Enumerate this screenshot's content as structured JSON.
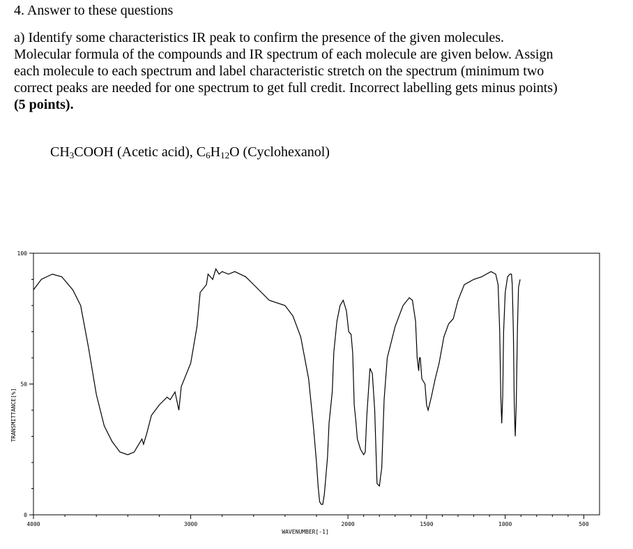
{
  "question": {
    "heading": "4. Answer to these questions",
    "part_a_lines": [
      "a) Identify some characteristics IR peak to confirm the presence of the given molecules.",
      "Molecular formula of the compounds and IR spectrum of each molecule are given below. Assign",
      "each molecule to each spectrum and label characteristic stretch on the spectrum (minimum two",
      "correct peaks are needed for one spectrum to get full credit. Incorrect labelling gets minus points)"
    ],
    "points": "(5 points).",
    "compounds": [
      {
        "formula_parts": [
          "CH",
          "3",
          "COOH"
        ],
        "name": "(Acetic acid),"
      },
      {
        "formula_parts": [
          "C",
          "6",
          "H",
          "12",
          "O"
        ],
        "name": "(Cyclohexanol)"
      }
    ]
  },
  "chart_data": {
    "type": "line",
    "xlabel": "WAVENUMBER[-1]",
    "ylabel": "TRANSMITTANCE[%]",
    "xlim": [
      4000,
      400
    ],
    "ylim": [
      0,
      100
    ],
    "x_ticks": [
      "4000",
      "3000",
      "2000",
      "1500",
      "1000",
      "500"
    ],
    "y_ticks": [
      "0",
      "50",
      "100"
    ],
    "series": [
      {
        "points": [
          [
            4000,
            86
          ],
          [
            3950,
            90
          ],
          [
            3880,
            92
          ],
          [
            3820,
            91
          ],
          [
            3750,
            86
          ],
          [
            3700,
            80
          ],
          [
            3650,
            64
          ],
          [
            3600,
            46
          ],
          [
            3550,
            34
          ],
          [
            3500,
            28
          ],
          [
            3450,
            24
          ],
          [
            3400,
            23
          ],
          [
            3360,
            24
          ],
          [
            3330,
            27
          ],
          [
            3310,
            29
          ],
          [
            3300,
            27
          ],
          [
            3280,
            31
          ],
          [
            3250,
            38
          ],
          [
            3200,
            42
          ],
          [
            3150,
            45
          ],
          [
            3130,
            44
          ],
          [
            3100,
            47
          ],
          [
            3075,
            40
          ],
          [
            3060,
            49
          ],
          [
            3000,
            58
          ],
          [
            2960,
            72
          ],
          [
            2940,
            85
          ],
          [
            2900,
            88
          ],
          [
            2890,
            92
          ],
          [
            2860,
            90
          ],
          [
            2840,
            94
          ],
          [
            2820,
            92
          ],
          [
            2800,
            93
          ],
          [
            2760,
            92
          ],
          [
            2720,
            93
          ],
          [
            2650,
            91
          ],
          [
            2600,
            88
          ],
          [
            2500,
            82
          ],
          [
            2400,
            80
          ],
          [
            2350,
            76
          ],
          [
            2300,
            68
          ],
          [
            2250,
            52
          ],
          [
            2220,
            34
          ],
          [
            2200,
            20
          ],
          [
            2190,
            11
          ],
          [
            2180,
            5
          ],
          [
            2170,
            4
          ],
          [
            2160,
            4
          ],
          [
            2150,
            8
          ],
          [
            2130,
            22
          ],
          [
            2120,
            35
          ],
          [
            2100,
            47
          ],
          [
            2090,
            62
          ],
          [
            2070,
            74
          ],
          [
            2050,
            80
          ],
          [
            2030,
            82
          ],
          [
            2010,
            78
          ],
          [
            1995,
            70
          ],
          [
            1980,
            69
          ],
          [
            1970,
            62
          ],
          [
            1960,
            42
          ],
          [
            1950,
            36
          ],
          [
            1940,
            29
          ],
          [
            1920,
            25
          ],
          [
            1900,
            23
          ],
          [
            1890,
            24
          ],
          [
            1880,
            38
          ],
          [
            1860,
            56
          ],
          [
            1845,
            54
          ],
          [
            1830,
            40
          ],
          [
            1815,
            12
          ],
          [
            1800,
            11
          ],
          [
            1785,
            18
          ],
          [
            1770,
            44
          ],
          [
            1750,
            60
          ],
          [
            1700,
            72
          ],
          [
            1650,
            80
          ],
          [
            1610,
            83
          ],
          [
            1590,
            82
          ],
          [
            1570,
            74
          ],
          [
            1560,
            60
          ],
          [
            1550,
            55
          ],
          [
            1545,
            60
          ],
          [
            1540,
            60
          ],
          [
            1530,
            52
          ],
          [
            1510,
            50
          ],
          [
            1500,
            42
          ],
          [
            1490,
            40
          ],
          [
            1470,
            45
          ],
          [
            1445,
            52
          ],
          [
            1420,
            58
          ],
          [
            1390,
            68
          ],
          [
            1360,
            73
          ],
          [
            1330,
            75
          ],
          [
            1300,
            82
          ],
          [
            1260,
            88
          ],
          [
            1230,
            89
          ],
          [
            1200,
            90
          ],
          [
            1150,
            91
          ],
          [
            1120,
            92
          ],
          [
            1090,
            93
          ],
          [
            1060,
            92
          ],
          [
            1045,
            88
          ],
          [
            1035,
            70
          ],
          [
            1028,
            45
          ],
          [
            1022,
            35
          ],
          [
            1016,
            45
          ],
          [
            1010,
            70
          ],
          [
            1000,
            85
          ],
          [
            985,
            91
          ],
          [
            970,
            92
          ],
          [
            960,
            92
          ],
          [
            955,
            88
          ],
          [
            948,
            70
          ],
          [
            942,
            42
          ],
          [
            936,
            30
          ],
          [
            930,
            42
          ],
          [
            922,
            72
          ],
          [
            915,
            87
          ],
          [
            905,
            90
          ]
        ]
      }
    ]
  }
}
